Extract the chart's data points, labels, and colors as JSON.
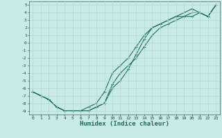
{
  "xlabel": "Humidex (Indice chaleur)",
  "bg_color": "#c8ebe5",
  "grid_color": "#b0d8d0",
  "line_color": "#1a6b60",
  "xlim": [
    -0.5,
    23.5
  ],
  "ylim": [
    -9.5,
    5.5
  ],
  "yticks": [
    5,
    4,
    3,
    2,
    1,
    0,
    -1,
    -2,
    -3,
    -4,
    -5,
    -6,
    -7,
    -8,
    -9
  ],
  "xticks": [
    0,
    1,
    2,
    3,
    4,
    5,
    6,
    7,
    8,
    9,
    10,
    11,
    12,
    13,
    14,
    15,
    16,
    17,
    18,
    19,
    20,
    21,
    22,
    23
  ],
  "line1_x": [
    0,
    1,
    2,
    3,
    4,
    5,
    6,
    7,
    8,
    9,
    10,
    11,
    12,
    13,
    14,
    15,
    16,
    17,
    18,
    19,
    20,
    21,
    22,
    23
  ],
  "line1_y": [
    -6.5,
    -7.0,
    -7.5,
    -8.5,
    -9.0,
    -9.0,
    -9.0,
    -9.0,
    -8.5,
    -8.0,
    -5.5,
    -4.0,
    -3.0,
    -2.0,
    -0.5,
    1.0,
    2.0,
    2.5,
    3.0,
    3.5,
    3.5,
    4.0,
    3.5,
    5.0
  ],
  "line2_x": [
    0,
    1,
    2,
    3,
    4,
    5,
    6,
    7,
    8,
    9,
    10,
    11,
    12,
    13,
    14,
    15,
    16,
    17,
    18,
    19,
    20,
    21,
    22,
    23
  ],
  "line2_y": [
    -6.5,
    -7.0,
    -7.5,
    -8.5,
    -9.0,
    -9.0,
    -9.0,
    -8.5,
    -8.0,
    -6.5,
    -4.0,
    -3.0,
    -2.0,
    -0.5,
    1.0,
    2.0,
    2.5,
    3.0,
    3.5,
    3.5,
    4.0,
    4.0,
    3.5,
    5.0
  ],
  "line3_x": [
    0,
    1,
    2,
    3,
    4,
    5,
    6,
    7,
    8,
    9,
    10,
    11,
    12,
    13,
    14,
    15,
    16,
    17,
    18,
    19,
    20,
    21,
    22,
    23
  ],
  "line3_y": [
    -6.5,
    -7.0,
    -7.5,
    -8.5,
    -9.0,
    -9.0,
    -9.0,
    -9.0,
    -8.5,
    -8.0,
    -6.0,
    -5.0,
    -3.5,
    -1.5,
    0.5,
    2.0,
    2.5,
    3.0,
    3.5,
    4.0,
    4.5,
    4.0,
    3.5,
    5.0
  ],
  "marker_size": 2.5,
  "line_width": 0.8
}
